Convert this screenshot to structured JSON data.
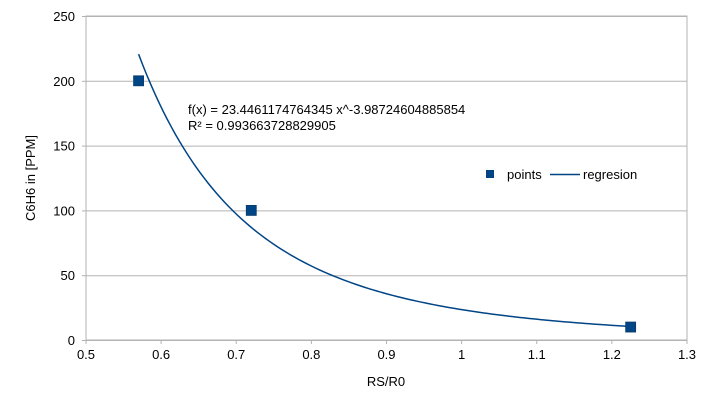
{
  "chart_data": {
    "type": "scatter",
    "title": "",
    "xlabel": "RS/R0",
    "ylabel": "C6H6 in [PPM]",
    "xlim": [
      0.5,
      1.3
    ],
    "ylim": [
      0,
      250
    ],
    "xticks": [
      0.5,
      0.6,
      0.7,
      0.8,
      0.9,
      1.0,
      1.1,
      1.2,
      1.3
    ],
    "xtick_labels": [
      "0.5",
      "0.6",
      "0.7",
      "0.8",
      "0.9",
      "1",
      "1.1",
      "1.2",
      "1.3"
    ],
    "yticks": [
      0,
      50,
      100,
      150,
      200,
      250
    ],
    "ytick_labels": [
      "0",
      "50",
      "100",
      "150",
      "200",
      "250"
    ],
    "grid": "horizontal",
    "legend_position": "right",
    "series": [
      {
        "name": "points",
        "kind": "scatter",
        "color": "#004586",
        "x": [
          0.57,
          0.72,
          1.225
        ],
        "y": [
          200,
          100,
          10
        ]
      },
      {
        "name": "regresion",
        "kind": "power-fit-line",
        "color": "#004586",
        "coefficient": 23.4461174764345,
        "exponent": -3.98724604885854,
        "x_range": [
          0.57,
          1.225
        ]
      }
    ],
    "annotations": [
      "f(x) = 23.4461174764345 x^-3.98724604885854",
      "R² = 0.993663728829905"
    ]
  }
}
